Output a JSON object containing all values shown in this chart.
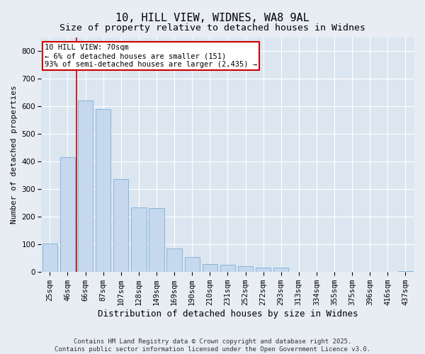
{
  "title": "10, HILL VIEW, WIDNES, WA8 9AL",
  "subtitle": "Size of property relative to detached houses in Widnes",
  "xlabel": "Distribution of detached houses by size in Widnes",
  "ylabel": "Number of detached properties",
  "categories": [
    "25sqm",
    "46sqm",
    "66sqm",
    "87sqm",
    "107sqm",
    "128sqm",
    "149sqm",
    "169sqm",
    "190sqm",
    "210sqm",
    "231sqm",
    "252sqm",
    "272sqm",
    "293sqm",
    "313sqm",
    "334sqm",
    "355sqm",
    "375sqm",
    "396sqm",
    "416sqm",
    "437sqm"
  ],
  "values": [
    104,
    415,
    620,
    590,
    335,
    235,
    230,
    85,
    55,
    30,
    25,
    20,
    15,
    15,
    0,
    0,
    0,
    0,
    0,
    0,
    3
  ],
  "bar_color": "#c5d8ee",
  "bar_edge_color": "#7bafd4",
  "vline_color": "#cc0000",
  "annotation_text": "10 HILL VIEW: 70sqm\n← 6% of detached houses are smaller (151)\n93% of semi-detached houses are larger (2,435) →",
  "annotation_box_color": "#ffffff",
  "annotation_box_edge": "#cc0000",
  "bg_color": "#e8edf4",
  "plot_bg_color": "#dce6f0",
  "grid_color": "#ffffff",
  "ylim": [
    0,
    850
  ],
  "yticks": [
    0,
    100,
    200,
    300,
    400,
    500,
    600,
    700,
    800
  ],
  "title_fontsize": 11,
  "subtitle_fontsize": 9.5,
  "xlabel_fontsize": 9,
  "ylabel_fontsize": 8,
  "tick_fontsize": 7.5,
  "footnote_fontsize": 6.5,
  "footnote": "Contains HM Land Registry data © Crown copyright and database right 2025.\nContains public sector information licensed under the Open Government Licence v3.0."
}
